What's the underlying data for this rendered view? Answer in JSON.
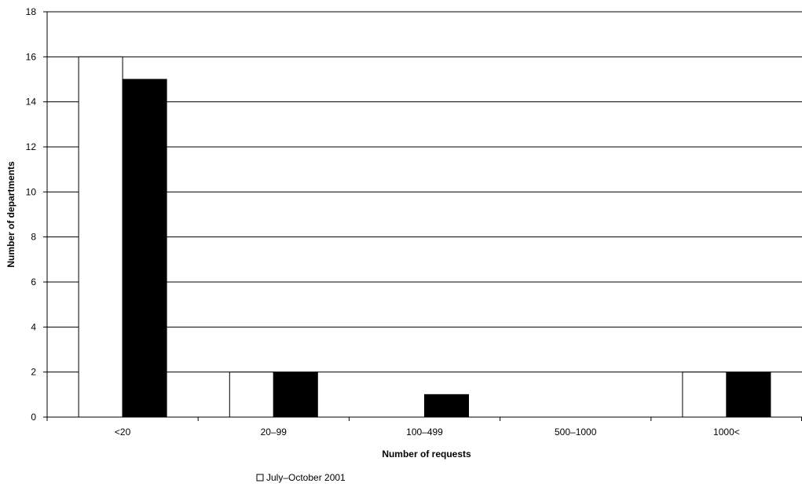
{
  "chart_data": {
    "type": "bar",
    "title": "",
    "xlabel": "Number of requests",
    "ylabel": "Number of departments",
    "categories": [
      "<20",
      "20–99",
      "100–499",
      "500–1000",
      "1000<"
    ],
    "series": [
      {
        "name": "July–October 2001",
        "values": [
          16,
          2,
          0,
          0,
          2
        ],
        "color": "#ffffff"
      },
      {
        "values": [
          15,
          2,
          1,
          0,
          2
        ],
        "color": "#000000"
      }
    ],
    "ylim": [
      0,
      18
    ],
    "yticks": [
      0,
      2,
      4,
      6,
      8,
      10,
      12,
      14,
      16,
      18
    ],
    "grid": true,
    "legend": "bottom-left"
  }
}
